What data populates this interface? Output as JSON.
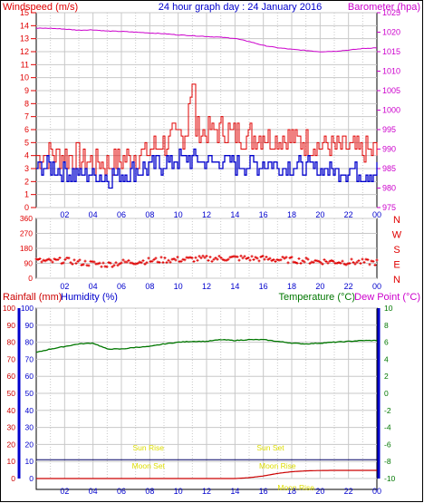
{
  "header": {
    "title": "24 hour graph day : 24 January 2016",
    "left_label": "Windspeed (m/s)",
    "right_label": "Barometer (hpa)"
  },
  "colors": {
    "wind": "#e00000",
    "gust_avg": "#0000cc",
    "baro": "#cc00cc",
    "temp": "#007700",
    "dew": "#cc00cc",
    "rain": "#cc0000",
    "humidity": "#0000cc",
    "sun_label": "#dddd00",
    "moon_label": "#dddd00",
    "grid": "#c8c8c8"
  },
  "x_ticks": [
    "02",
    "04",
    "06",
    "08",
    "10",
    "12",
    "14",
    "16",
    "18",
    "20",
    "22",
    "00"
  ],
  "chart_data": [
    {
      "type": "line",
      "title": "24 hour graph day : 24 January 2016",
      "ylabel_left": "Windspeed (m/s)",
      "ylabel_right": "Barometer (hpa)",
      "ylim_left": [
        0,
        15
      ],
      "ylim_right": [
        975,
        1025
      ],
      "yticks_left": [
        "0",
        "1",
        "2",
        "3",
        "4",
        "5",
        "6",
        "7",
        "8",
        "9",
        "10",
        "11",
        "12",
        "13",
        "14",
        "15"
      ],
      "yticks_right": [
        "975",
        "980",
        "985",
        "990",
        "995",
        "1000",
        "1005",
        "1010",
        "1015",
        "1020",
        "1025"
      ],
      "x_hours": [
        0,
        1,
        2,
        3,
        4,
        5,
        6,
        7,
        8,
        9,
        10,
        11,
        12,
        13,
        14,
        15,
        16,
        17,
        18,
        19,
        20,
        21,
        22,
        23,
        24
      ],
      "series": [
        {
          "name": "Windspeed",
          "axis": "left",
          "values": [
            4,
            4.2,
            4,
            3.8,
            3.5,
            3.2,
            3.6,
            4,
            4.3,
            5,
            5.5,
            6,
            5.8,
            6,
            5.7,
            5.5,
            5.6,
            5.4,
            5.3,
            5,
            4.8,
            4.6,
            4.5,
            4.3,
            4.2
          ]
        },
        {
          "name": "Average",
          "axis": "left",
          "values": [
            3,
            3.1,
            2.8,
            2.6,
            2.5,
            2.3,
            2.6,
            2.9,
            3.1,
            3.4,
            3.6,
            3.7,
            3.5,
            3.6,
            3.4,
            3.3,
            3.3,
            3.2,
            3.2,
            3.1,
            3,
            2.9,
            2.9,
            2.8,
            2.8
          ]
        },
        {
          "name": "Barometer",
          "axis": "right",
          "values": [
            1021,
            1021,
            1020.8,
            1020.5,
            1020.6,
            1020.3,
            1020.2,
            1020,
            1019.8,
            1019.6,
            1019.3,
            1019.1,
            1018.9,
            1018.7,
            1018.4,
            1017.6,
            1016.6,
            1016,
            1015.6,
            1015.3,
            1015,
            1015.1,
            1015.4,
            1015.8,
            1016
          ]
        }
      ]
    },
    {
      "type": "scatter",
      "ylabel_right": [
        "N",
        "W",
        "S",
        "E",
        "N"
      ],
      "ylim": [
        0,
        360
      ],
      "yticks": [
        "0",
        "90",
        "180",
        "270",
        "360"
      ],
      "x_hours": [
        0,
        1,
        2,
        3,
        4,
        5,
        6,
        7,
        8,
        9,
        10,
        11,
        12,
        13,
        14,
        15,
        16,
        17,
        18,
        19,
        20,
        21,
        22,
        23,
        24
      ],
      "series": [
        {
          "name": "Wind direction",
          "values": [
            105,
            100,
            108,
            95,
            88,
            82,
            95,
            100,
            105,
            110,
            112,
            115,
            118,
            120,
            122,
            120,
            118,
            112,
            110,
            105,
            102,
            100,
            98,
            97,
            95
          ]
        }
      ]
    },
    {
      "type": "line",
      "ylabel_left": "Rainfall (mm)",
      "ylabel_left2": "Humidity (%)",
      "ylabel_right": "Temperature (°C)",
      "ylabel_right2": "Dew Point (°C)",
      "ylim_left": [
        0,
        100
      ],
      "ylim_right": [
        -10,
        10
      ],
      "yticks_left": [
        "0",
        "10",
        "20",
        "30",
        "40",
        "50",
        "60",
        "70",
        "80",
        "90",
        "100"
      ],
      "yticks_right": [
        "-10",
        "-8",
        "-6",
        "-4",
        "-2",
        "0",
        "2",
        "4",
        "6",
        "8",
        "10"
      ],
      "x_hours": [
        0,
        1,
        2,
        3,
        4,
        5,
        6,
        7,
        8,
        9,
        10,
        11,
        12,
        13,
        14,
        15,
        16,
        17,
        18,
        19,
        20,
        21,
        22,
        23,
        24
      ],
      "series": [
        {
          "name": "Temperature",
          "axis": "right",
          "values": [
            4.8,
            5.2,
            5.5,
            5.8,
            5.9,
            5.2,
            5.2,
            5.4,
            5.5,
            5.8,
            6,
            6.1,
            6.1,
            6.3,
            6.2,
            6.3,
            6.3,
            6.1,
            5.9,
            5.8,
            5.9,
            6,
            6.1,
            6.2,
            6.2
          ]
        },
        {
          "name": "Humidity",
          "axis": "left",
          "values": [
            11,
            11,
            11,
            11,
            11,
            11,
            11,
            11,
            11,
            11,
            11,
            11,
            11,
            11,
            11,
            11,
            11,
            11,
            11,
            11,
            11,
            11,
            11,
            11,
            11
          ]
        },
        {
          "name": "Rainfall",
          "axis": "left",
          "values": [
            0,
            0,
            0,
            0,
            0,
            0,
            0,
            0,
            0,
            0,
            0,
            0,
            0,
            0,
            0,
            0.5,
            1.5,
            3,
            4,
            4.5,
            4.7,
            4.8,
            4.8,
            4.8,
            4.8
          ]
        }
      ],
      "annotations": [
        {
          "label": "Sun Rise",
          "hour": 7.9
        },
        {
          "label": "Sun Set",
          "hour": 16.5
        },
        {
          "label": "Moon Set",
          "hour": 7.9
        },
        {
          "label": "Moon Rise",
          "hour": 17
        },
        {
          "label": "Moon Rise",
          "hour": 18.3
        }
      ]
    }
  ]
}
